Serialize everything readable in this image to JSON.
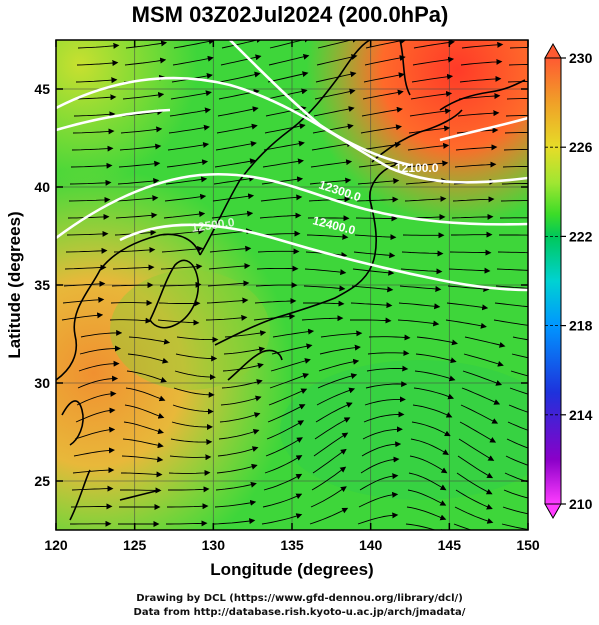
{
  "title": "MSM 03Z02Jul2024 (200.0hPa)",
  "xlabel": "Longitude (degrees)",
  "ylabel": "Latitude  (degrees)",
  "x_ticks": [
    "120",
    "125",
    "130",
    "135",
    "140",
    "145",
    "150"
  ],
  "y_ticks": [
    "45",
    "40",
    "35",
    "30",
    "25"
  ],
  "colorbar": {
    "ticks": [
      "230",
      "226",
      "222",
      "218",
      "214",
      "210"
    ],
    "range": [
      210,
      230
    ],
    "colors": [
      "#ff3cff",
      "#8a00c8",
      "#1e32dc",
      "#0096ff",
      "#00d2d2",
      "#00c85a",
      "#3cdc28",
      "#a0e632",
      "#e6dc28",
      "#f0a028",
      "#ff5a32"
    ]
  },
  "contour_labels": [
    "12100.0",
    "12300.0",
    "12400.0",
    "12500.0"
  ],
  "credits": [
    "Drawing by DCL (https://www.gfd-dennou.org/library/dcl/)",
    "Data from http://database.rish.kyoto-u.ac.jp/arch/jmadata/"
  ],
  "chart_data": {
    "type": "heatmap",
    "title": "MSM 03Z02Jul2024 (200.0hPa)",
    "xlabel": "Longitude (degrees)",
    "ylabel": "Latitude  (degrees)",
    "xlim": [
      120,
      150
    ],
    "ylim": [
      22.5,
      47.5
    ],
    "grid": true,
    "colorbar_range": [
      210,
      230
    ],
    "contour_levels": [
      12100,
      12300,
      12400,
      12500
    ]
  }
}
